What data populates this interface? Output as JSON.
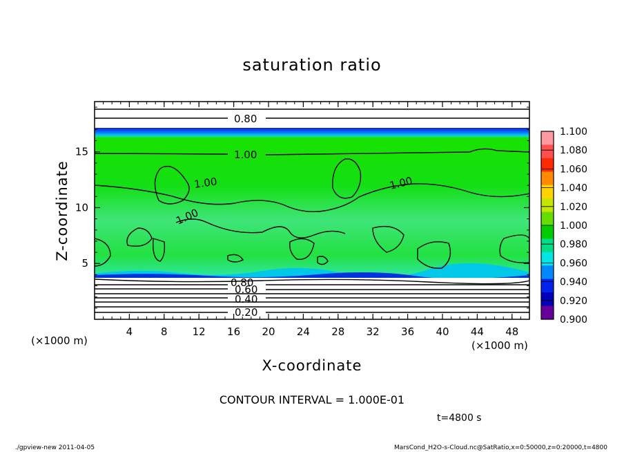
{
  "chart_data": {
    "type": "heatmap",
    "title": "saturation ratio",
    "xlabel": "X-coordinate",
    "ylabel": "Z-coordinate",
    "x_unit": "(×1000 m)",
    "z_unit": "(×1000 m)",
    "xlim": [
      0,
      50
    ],
    "ylim": [
      0,
      19.5
    ],
    "x_ticks": [
      "4",
      "8",
      "12",
      "16",
      "20",
      "24",
      "28",
      "32",
      "36",
      "40",
      "44",
      "48"
    ],
    "y_ticks": [
      "5",
      "10",
      "15"
    ],
    "colorbar": {
      "levels": [
        "1.100",
        "1.080",
        "1.060",
        "1.040",
        "1.020",
        "1.000",
        "0.980",
        "0.960",
        "0.940",
        "0.920",
        "0.900"
      ],
      "colors": [
        "#ff9aa0",
        "#ff5050",
        "#ff2a00",
        "#ff8a00",
        "#ffd200",
        "#c4e600",
        "#66dd00",
        "#00cc00",
        "#00dd88",
        "#00e6e6",
        "#0088ff",
        "#0022ee",
        "#0000bb",
        "#660099"
      ]
    },
    "contour_labels": [
      {
        "text": "0.80",
        "x": 17.5,
        "z": 18.0
      },
      {
        "text": "1.00",
        "x": 17.5,
        "z": 14.9
      },
      {
        "text": "1.00",
        "x": 11.5,
        "z": 12.3
      },
      {
        "text": "1.00",
        "x": 34.0,
        "z": 12.3
      },
      {
        "text": "1.00",
        "x": 10.0,
        "z": 9.1
      },
      {
        "text": "0.80",
        "x": 17.0,
        "z": 3.3
      },
      {
        "text": "0.60",
        "x": 17.0,
        "z": 2.5
      },
      {
        "text": "0.40",
        "x": 17.0,
        "z": 1.7
      },
      {
        "text": "0.20",
        "x": 17.0,
        "z": 0.5
      }
    ]
  },
  "contour_interval": "CONTOUR INTERVAL = 1.000E-01",
  "time_label": "t=4800 s",
  "footer_left": "./gpview-new   2011-04-05",
  "footer_right": "MarsCond_H2O-s-Cloud.nc@SatRatio,x=0:50000,z=0:20000,t=4800"
}
